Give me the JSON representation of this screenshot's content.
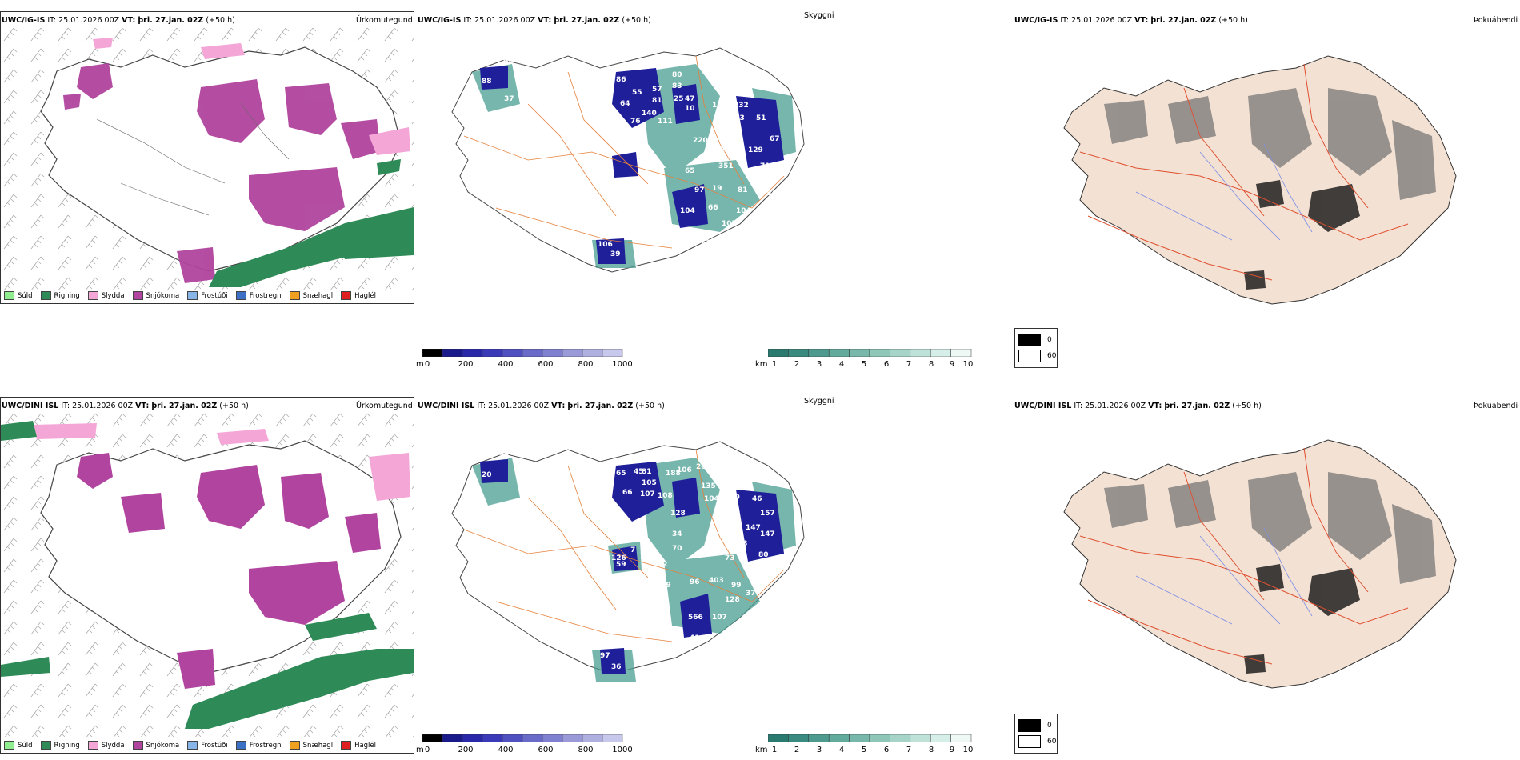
{
  "rows": [
    {
      "id": "ig",
      "model": "UWC/IG-IS",
      "it_label": "IT:",
      "it_value": "25.01.2026 00Z",
      "vt_label": "VT:",
      "vt_value": "þri. 27.jan. 02Z",
      "lead": "(+50 h)",
      "cloud_labels": [
        "129",
        "130",
        "88",
        "37",
        "86",
        "55",
        "57",
        "64",
        "81",
        "76",
        "80",
        "140",
        "111",
        "83",
        "25",
        "47",
        "10",
        "166",
        "232",
        "273",
        "51",
        "115",
        "67",
        "220",
        "229",
        "129",
        "119",
        "65",
        "351",
        "71",
        "97",
        "81",
        "54",
        "64",
        "104",
        "66",
        "104",
        "105",
        "84",
        "65",
        "179",
        "51",
        "19",
        "106",
        "39"
      ]
    },
    {
      "id": "dini",
      "model": "UWC/DINI ISL",
      "it_label": "IT:",
      "it_value": "25.01.2026 00Z",
      "vt_label": "VT:",
      "vt_value": "þri. 27.jan. 02Z",
      "lead": "(+50 h)",
      "cloud_labels": [
        "107",
        "23",
        "20",
        "65",
        "45",
        "66",
        "108",
        "107",
        "105",
        "62",
        "81",
        "106",
        "188",
        "204",
        "135",
        "126",
        "104",
        "290",
        "46",
        "147",
        "128",
        "157",
        "34",
        "610",
        "147",
        "70",
        "83",
        "80",
        "73",
        "292",
        "82",
        "119",
        "96",
        "403",
        "99",
        "37",
        "128",
        "566",
        "107",
        "41",
        "126",
        "59",
        "7",
        "97",
        "36"
      ]
    }
  ],
  "titles": {
    "precip": "Úrkomutegund",
    "sky": "Skyggni",
    "fog": "Þokuábendi"
  },
  "precip_legend": [
    {
      "label": "Súld",
      "color": "#90ee90"
    },
    {
      "label": "Rigning",
      "color": "#2e8b57"
    },
    {
      "label": "Slydda",
      "color": "#f4a6d7"
    },
    {
      "label": "Snjókoma",
      "color": "#b0449e"
    },
    {
      "label": "Frostúði",
      "color": "#87b5e8"
    },
    {
      "label": "Frostregn",
      "color": "#3b70c4"
    },
    {
      "label": "Snæhagl",
      "color": "#f0a020"
    },
    {
      "label": "Haglél",
      "color": "#e02020"
    }
  ],
  "cloud_scale": {
    "unit": "m",
    "ticks": [
      "0",
      "200",
      "400",
      "600",
      "800",
      "1000"
    ],
    "colors": [
      "#000000",
      "#1a1a8a",
      "#2828a8",
      "#3a3ab8",
      "#5050c0",
      "#6a6ac8",
      "#8080d0",
      "#9a9ad8",
      "#b0b0e0",
      "#c8c8ec"
    ]
  },
  "vis_scale": {
    "unit": "km",
    "ticks": [
      "1",
      "2",
      "3",
      "4",
      "5",
      "6",
      "7",
      "8",
      "9",
      "10"
    ],
    "colors": [
      "#2a7a70",
      "#3a8a80",
      "#4e9a8e",
      "#62aa9c",
      "#78b8aa",
      "#8ec6b8",
      "#a6d4c8",
      "#bee2d8",
      "#d6eee8",
      "#eef8f5"
    ]
  },
  "fog_key": {
    "dark": "0",
    "light": "60"
  },
  "colors": {
    "snow": "#b0449e",
    "rain": "#2e8b57",
    "sleet": "#f4a6d7",
    "land": "#f3e1d3",
    "roads": "#e6803a",
    "cloud_base": "#1f1f9a",
    "visibility": "#4a9e92"
  }
}
